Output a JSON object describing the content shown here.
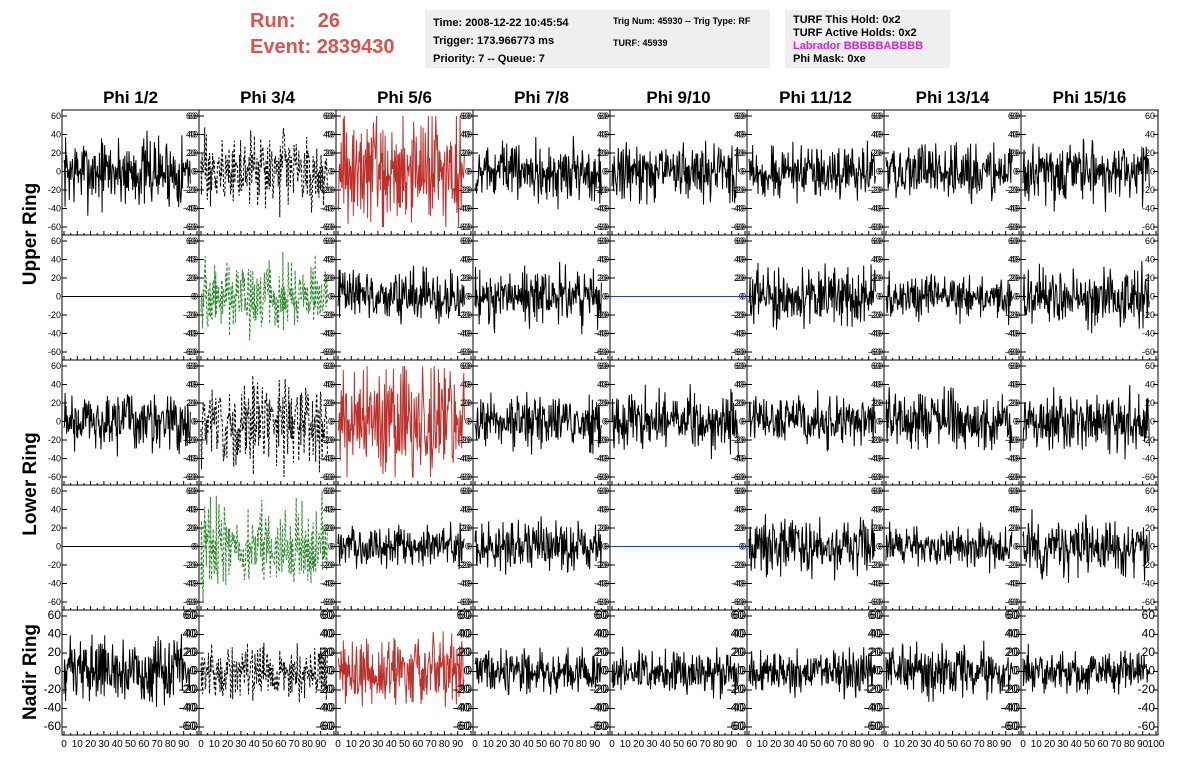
{
  "header": {
    "run_label": "Run:",
    "run_value": "26",
    "event_label": "Event:",
    "event_value": "2839430",
    "time": "Time: 2008-12-22 10:45:54",
    "trigger": "Trigger: 173.966773 ms",
    "priority": "Priority: 7 -- Queue: 7",
    "trig_num": "Trig Num: 45930 -- Trig Type: RF",
    "turf": "TURF: 45939",
    "turf_this_hold": "TURF This Hold: 0x2",
    "turf_active_holds": "TURF Active Holds: 0x2",
    "labrador": "Labrador BBBBBABBBB",
    "phi_mask": "Phi Mask: 0xe"
  },
  "colors": {
    "run_text": "#d9534f",
    "labrador": "#e020e0",
    "red_trace": "#c0302b",
    "green_trace": "#2a8a2a",
    "blue_trace": "#2040c0"
  },
  "chart_data": {
    "type": "line",
    "columns": [
      "Phi 1/2",
      "Phi 3/4",
      "Phi 5/6",
      "Phi 7/8",
      "Phi 9/10",
      "Phi 11/12",
      "Phi 13/14",
      "Phi 15/16"
    ],
    "ring_labels": [
      "Upper Ring",
      "Lower Ring",
      "Nadir Ring"
    ],
    "rows": 5,
    "ylim": [
      -60,
      60
    ],
    "xlim": [
      0,
      100
    ],
    "y_ticks": [
      "60",
      "40",
      "20",
      "0",
      "-20",
      "-40",
      "-60"
    ],
    "x_ticks": [
      "0",
      "10",
      "20",
      "30",
      "40",
      "50",
      "60",
      "70",
      "80",
      "90",
      "100"
    ],
    "panels": [
      [
        "black",
        "black-dashed",
        "red",
        "black",
        "black",
        "black",
        "black",
        "black"
      ],
      [
        "flat-black",
        "green-dashed",
        "black",
        "black",
        "flat-blue",
        "black",
        "black",
        "black"
      ],
      [
        "black",
        "black-dashed",
        "red",
        "black",
        "black",
        "black",
        "black",
        "black"
      ],
      [
        "flat-black",
        "green-dashed",
        "black",
        "black",
        "flat-blue",
        "black",
        "black",
        "black"
      ],
      [
        "black",
        "black-dashed",
        "red",
        "black",
        "black",
        "black",
        "black",
        "black"
      ]
    ],
    "amplitudes": [
      [
        25,
        25,
        40,
        20,
        20,
        18,
        18,
        22
      ],
      [
        0,
        25,
        18,
        20,
        0,
        20,
        15,
        22
      ],
      [
        20,
        30,
        40,
        18,
        20,
        18,
        20,
        22
      ],
      [
        0,
        30,
        15,
        18,
        0,
        20,
        15,
        20
      ],
      [
        22,
        18,
        25,
        15,
        15,
        15,
        18,
        15
      ]
    ]
  }
}
